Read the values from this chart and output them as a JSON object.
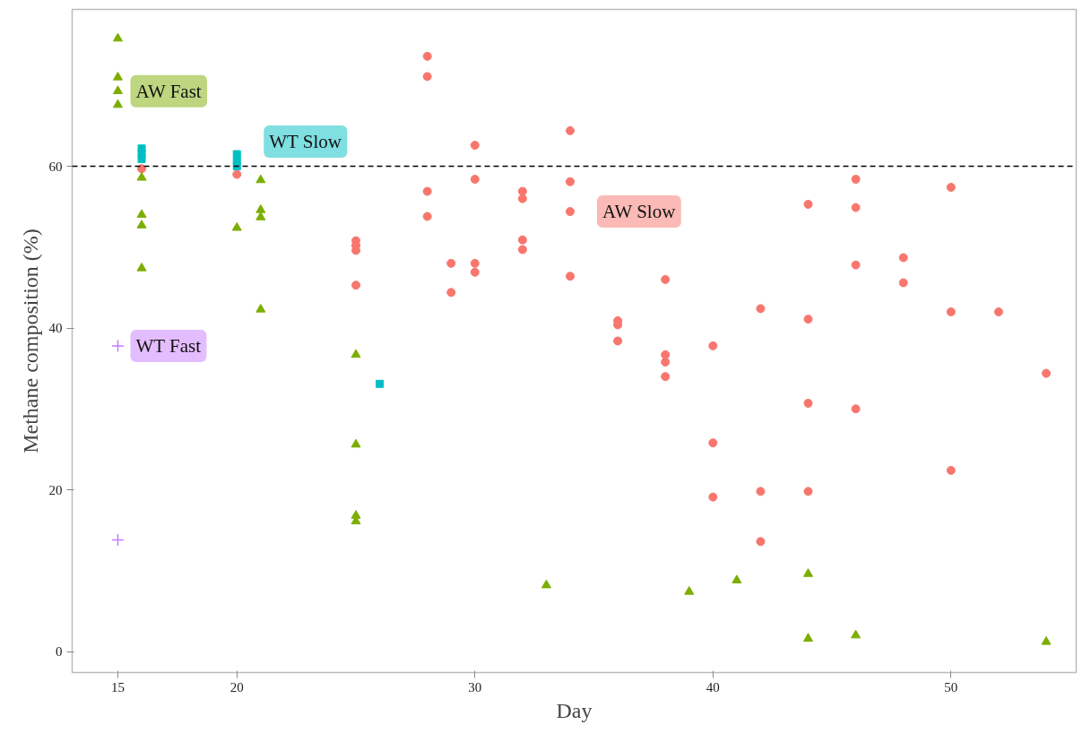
{
  "chart_data": {
    "type": "scatter",
    "xlabel": "Day",
    "ylabel": "Methane composition (%)",
    "xlim": [
      13.08,
      55.26
    ],
    "ylim": [
      -2.6,
      79.4
    ],
    "xticks": [
      15,
      20,
      30,
      40,
      50
    ],
    "yticks": [
      0,
      20,
      40,
      60
    ],
    "grid": false,
    "legend": false,
    "ref_lines": [
      {
        "axis": "y",
        "value": 60,
        "color": "#000000",
        "line_style": "dashed"
      }
    ],
    "series": [
      {
        "name": "AW Slow",
        "color": "#f8766d",
        "marker": "circle",
        "x": [
          16,
          20,
          25,
          25,
          25,
          25,
          28,
          28,
          28,
          28,
          29,
          29,
          30,
          30,
          30,
          30,
          32,
          32,
          32,
          32,
          34,
          34,
          34,
          34,
          36,
          36,
          36,
          38,
          38,
          38,
          38,
          40,
          40,
          40,
          42,
          42,
          42,
          44,
          44,
          44,
          44,
          46,
          46,
          46,
          46,
          48,
          48,
          50,
          50,
          50,
          52,
          54
        ],
        "values": [
          59.7,
          59,
          50.8,
          50.2,
          49.6,
          45.3,
          73.6,
          71.1,
          56.9,
          53.8,
          48,
          44.4,
          62.6,
          58.4,
          48,
          46.9,
          56.9,
          56,
          50.9,
          49.7,
          64.4,
          58.1,
          54.4,
          46.4,
          40.9,
          40.4,
          38.4,
          46,
          36.7,
          35.8,
          34,
          37.8,
          25.8,
          19.1,
          42.4,
          19.8,
          13.6,
          55.3,
          41.1,
          30.7,
          19.8,
          58.4,
          54.9,
          47.8,
          30,
          48.7,
          45.6,
          57.4,
          42,
          22.4,
          42,
          34.4
        ]
      },
      {
        "name": "AW Fast",
        "color": "#7cae00",
        "marker": "triangle",
        "x": [
          15,
          15,
          15,
          15,
          16,
          16,
          16,
          16,
          20,
          21,
          21,
          21,
          21,
          25,
          25,
          25,
          25,
          33,
          39,
          41,
          44,
          44,
          46,
          54
        ],
        "values": [
          75.8,
          71,
          69.3,
          67.6,
          58.6,
          54,
          52.7,
          47.4,
          52.4,
          58.3,
          54.6,
          53.7,
          42.3,
          36.7,
          25.6,
          16.8,
          16.1,
          8.2,
          7.4,
          8.8,
          9.6,
          1.6,
          2,
          1.2
        ]
      },
      {
        "name": "WT Slow",
        "color": "#00bfc4",
        "marker": "square",
        "x": [
          16,
          16,
          16,
          20,
          20,
          20,
          26
        ],
        "values": [
          62.2,
          61.6,
          60.9,
          61.5,
          60.7,
          60,
          33.1
        ]
      },
      {
        "name": "WT Fast",
        "color": "#c77cff",
        "marker": "cross",
        "x": [
          15,
          15
        ],
        "values": [
          37.8,
          13.8
        ]
      }
    ]
  }
}
